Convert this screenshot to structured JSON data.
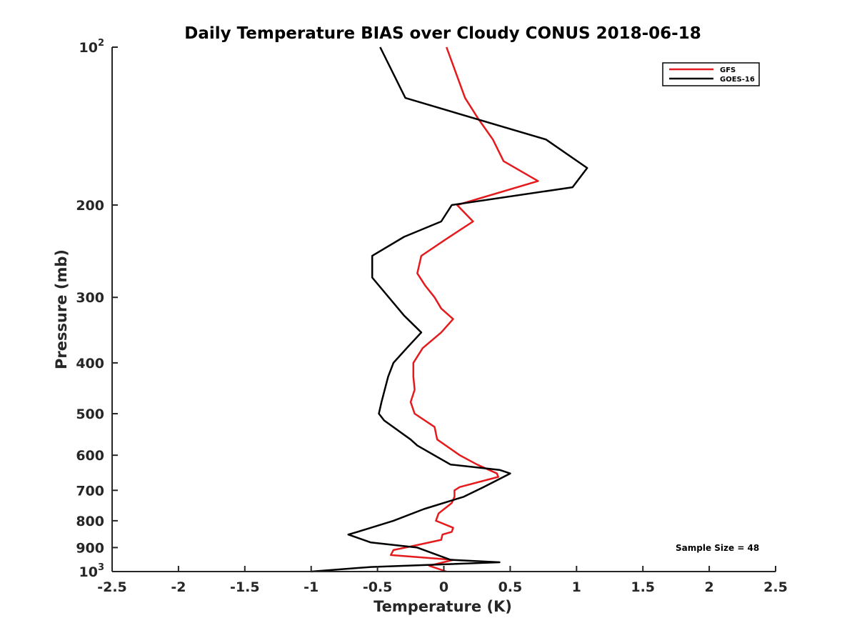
{
  "chart_data": {
    "type": "line",
    "title": "Daily Temperature BIAS over Cloudy CONUS 2018-06-18",
    "xlabel": "Temperature (K)",
    "ylabel": "Pressure (mb)",
    "xlim": [
      -2.5,
      2.5
    ],
    "ylim": [
      100,
      1000
    ],
    "yscale": "log",
    "y_reversed": true,
    "grid": false,
    "legend_position": "top-right",
    "x_ticks": [
      "-2.5",
      "-2",
      "-1.5",
      "-1",
      "-0.5",
      "0",
      "0.5",
      "1",
      "1.5",
      "2",
      "2.5"
    ],
    "x_tick_values": [
      -2.5,
      -2,
      -1.5,
      -1,
      -0.5,
      0,
      0.5,
      1,
      1.5,
      2,
      2.5
    ],
    "y_tick_values": [
      100,
      200,
      300,
      400,
      500,
      600,
      700,
      800,
      900,
      1000
    ],
    "y_ticks": [
      {
        "base": "10",
        "exp": "2"
      },
      {
        "base": "200",
        "exp": ""
      },
      {
        "base": "300",
        "exp": ""
      },
      {
        "base": "400",
        "exp": ""
      },
      {
        "base": "500",
        "exp": ""
      },
      {
        "base": "600",
        "exp": ""
      },
      {
        "base": "700",
        "exp": ""
      },
      {
        "base": "800",
        "exp": ""
      },
      {
        "base": "900",
        "exp": ""
      },
      {
        "base": "10",
        "exp": "3"
      }
    ],
    "annotation": "Sample Size = 48",
    "series": [
      {
        "name": "GFS",
        "color": "#e41a1c",
        "points": [
          [
            0.02,
            100
          ],
          [
            0.16,
            125
          ],
          [
            0.26,
            137
          ],
          [
            0.37,
            150
          ],
          [
            0.45,
            165
          ],
          [
            0.71,
            180
          ],
          [
            0.1,
            200
          ],
          [
            0.22,
            215
          ],
          [
            0.02,
            232
          ],
          [
            -0.17,
            250
          ],
          [
            -0.2,
            270
          ],
          [
            -0.14,
            285
          ],
          [
            -0.07,
            300
          ],
          [
            -0.02,
            315
          ],
          [
            0.07,
            330
          ],
          [
            -0.02,
            350
          ],
          [
            -0.16,
            375
          ],
          [
            -0.23,
            400
          ],
          [
            -0.23,
            425
          ],
          [
            -0.22,
            450
          ],
          [
            -0.25,
            475
          ],
          [
            -0.22,
            500
          ],
          [
            -0.07,
            530
          ],
          [
            -0.05,
            560
          ],
          [
            0.12,
            600
          ],
          [
            0.25,
            625
          ],
          [
            0.4,
            650
          ],
          [
            0.41,
            660
          ],
          [
            0.12,
            690
          ],
          [
            0.08,
            700
          ],
          [
            0.08,
            720
          ],
          [
            0.06,
            740
          ],
          [
            -0.04,
            775
          ],
          [
            -0.06,
            800
          ],
          [
            0.07,
            825
          ],
          [
            0.06,
            840
          ],
          [
            -0.01,
            850
          ],
          [
            -0.02,
            870
          ],
          [
            -0.2,
            890
          ],
          [
            -0.38,
            910
          ],
          [
            -0.4,
            930
          ],
          [
            0.07,
            950
          ],
          [
            -0.11,
            975
          ],
          [
            0.02,
            1000
          ]
        ]
      },
      {
        "name": "GOES-16",
        "color": "#000000",
        "points": [
          [
            -0.48,
            100
          ],
          [
            -0.29,
            125
          ],
          [
            0.77,
            150
          ],
          [
            1.08,
            170
          ],
          [
            0.97,
            185
          ],
          [
            0.06,
            200
          ],
          [
            -0.02,
            215
          ],
          [
            -0.3,
            230
          ],
          [
            -0.54,
            250
          ],
          [
            -0.54,
            275
          ],
          [
            -0.3,
            325
          ],
          [
            -0.17,
            350
          ],
          [
            -0.28,
            375
          ],
          [
            -0.38,
            400
          ],
          [
            -0.42,
            425
          ],
          [
            -0.47,
            475
          ],
          [
            -0.49,
            500
          ],
          [
            -0.45,
            515
          ],
          [
            -0.25,
            560
          ],
          [
            -0.2,
            575
          ],
          [
            0.05,
            625
          ],
          [
            0.42,
            640
          ],
          [
            0.5,
            650
          ],
          [
            0.3,
            690
          ],
          [
            0.15,
            720
          ],
          [
            -0.15,
            760
          ],
          [
            -0.38,
            800
          ],
          [
            -0.65,
            840
          ],
          [
            -0.72,
            850
          ],
          [
            -0.55,
            880
          ],
          [
            -0.2,
            900
          ],
          [
            0.05,
            950
          ],
          [
            0.42,
            960
          ],
          [
            -0.55,
            980
          ],
          [
            -1.0,
            1000
          ]
        ]
      }
    ]
  }
}
